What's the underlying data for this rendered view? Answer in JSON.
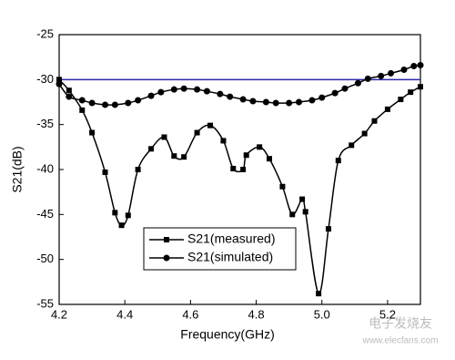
{
  "chart_data": {
    "type": "line",
    "x_label": "Frequency(GHz)",
    "y_label": "S21(dB)",
    "xlim": [
      4.2,
      5.3
    ],
    "ylim": [
      -55,
      -25
    ],
    "xticks": [
      4.2,
      4.4,
      4.6,
      4.8,
      {
        "value": 5,
        "label": "5.0"
      },
      5.2
    ],
    "yticks": [
      -25,
      -30,
      -35,
      -40,
      -45,
      -50,
      -55
    ],
    "reference_line": {
      "value": -30,
      "color": "#2a2aa8"
    },
    "legend": "lower-left",
    "series": [
      {
        "name": "S21(measured)",
        "color": "#000000",
        "marker": "square",
        "x": [
          4.2,
          4.23,
          4.27,
          4.3,
          4.34,
          4.37,
          4.39,
          4.41,
          4.44,
          4.48,
          4.52,
          4.55,
          4.58,
          4.62,
          4.66,
          4.7,
          4.73,
          4.76,
          4.77,
          4.81,
          4.84,
          4.88,
          4.91,
          4.94,
          4.95,
          4.99,
          5.02,
          5.05,
          5.09,
          5.13,
          5.16,
          5.2,
          5.24,
          5.27,
          5.3
        ],
        "values": [
          -30,
          -31.2,
          -33.4,
          -35.9,
          -40.3,
          -44.8,
          -46.2,
          -45.1,
          -40,
          -37.7,
          -36.4,
          -38.5,
          -38.6,
          -35.9,
          -35.1,
          -36.8,
          -39.9,
          -40,
          -38.4,
          -37.5,
          -38.8,
          -41.9,
          -45,
          -43.3,
          -44.7,
          -53.8,
          -46.6,
          -39,
          -37.3,
          -36,
          -34.6,
          -33.3,
          -32.2,
          -31.4,
          -30.8
        ]
      },
      {
        "name": "S21(simulated)",
        "color": "#000000",
        "marker": "circle",
        "x": [
          4.2,
          4.23,
          4.27,
          4.3,
          4.34,
          4.37,
          4.41,
          4.44,
          4.48,
          4.51,
          4.55,
          4.58,
          4.62,
          4.65,
          4.69,
          4.72,
          4.76,
          4.79,
          4.83,
          4.86,
          4.9,
          4.93,
          4.97,
          5.0,
          5.04,
          5.07,
          5.11,
          5.14,
          5.18,
          5.21,
          5.25,
          5.28,
          5.3
        ],
        "values": [
          -30.5,
          -31.9,
          -32.3,
          -32.6,
          -32.8,
          -32.8,
          -32.6,
          -32.3,
          -31.8,
          -31.4,
          -31.1,
          -31,
          -31.1,
          -31.3,
          -31.6,
          -31.9,
          -32.2,
          -32.4,
          -32.5,
          -32.6,
          -32.6,
          -32.5,
          -32.3,
          -32,
          -31.5,
          -31,
          -30.4,
          -29.9,
          -29.6,
          -29.3,
          -28.9,
          -28.5,
          -28.4
        ]
      }
    ],
    "watermark": [
      "电子发烧友",
      "www.elecfans.com"
    ]
  }
}
